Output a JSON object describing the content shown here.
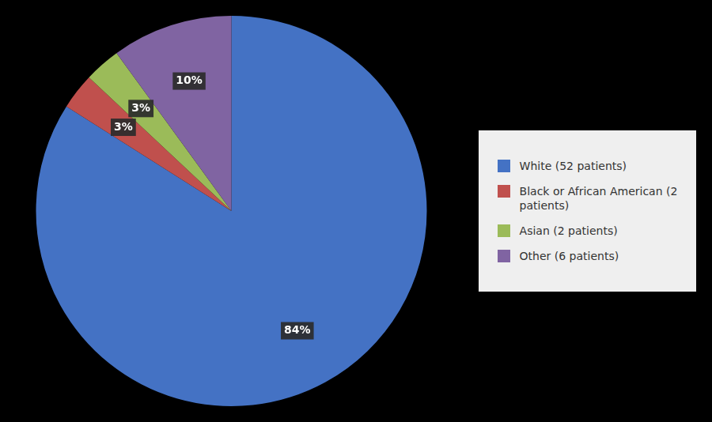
{
  "chart_data": {
    "type": "pie",
    "categories": [
      "White (52 patients)",
      "Black or African American (2\n patients)",
      "Asian (2 patients)",
      "Other (6 patients)"
    ],
    "values": [
      84,
      3,
      3,
      10
    ],
    "value_labels": [
      "84%",
      "3%",
      "3%",
      "10%"
    ],
    "colors": [
      "#4472C4",
      "#C0504D",
      "#9BBB59",
      "#8064A2"
    ],
    "data_labels": true,
    "legend": "right"
  }
}
